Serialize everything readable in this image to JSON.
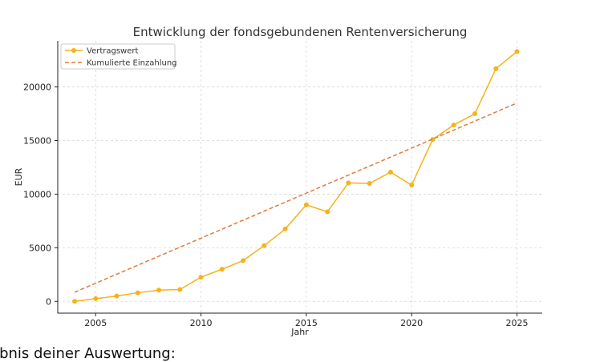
{
  "chart_data": {
    "type": "line",
    "title": "Entwicklung der fondsgebundenen Rentenversicherung",
    "xlabel": "Jahr",
    "ylabel": "EUR",
    "xlim": [
      2003.2,
      2026.2
    ],
    "ylim": [
      -1100,
      24300
    ],
    "xticks": [
      2005,
      2010,
      2015,
      2020,
      2025
    ],
    "yticks": [
      0,
      5000,
      10000,
      15000,
      20000
    ],
    "grid": true,
    "legend_position": "top-left",
    "series": [
      {
        "name": "Vertragswert",
        "style": "solid-with-markers",
        "color": "#f5b21b",
        "x": [
          2004,
          2005,
          2006,
          2007,
          2008,
          2009,
          2010,
          2011,
          2012,
          2013,
          2014,
          2015,
          2016,
          2017,
          2018,
          2019,
          2020,
          2021,
          2022,
          2023,
          2024,
          2025
        ],
        "y": [
          0,
          250,
          500,
          800,
          1050,
          1100,
          2250,
          3000,
          3800,
          5200,
          6750,
          9000,
          8350,
          11050,
          11000,
          12050,
          10850,
          15100,
          16450,
          17500,
          21700,
          23300
        ]
      },
      {
        "name": "Kumulierte Einzahlung",
        "style": "dashed",
        "color": "#e07b39",
        "x": [
          2004,
          2025
        ],
        "y": [
          850,
          18500
        ]
      }
    ]
  },
  "caption": "ebnis deiner Auswertung:"
}
